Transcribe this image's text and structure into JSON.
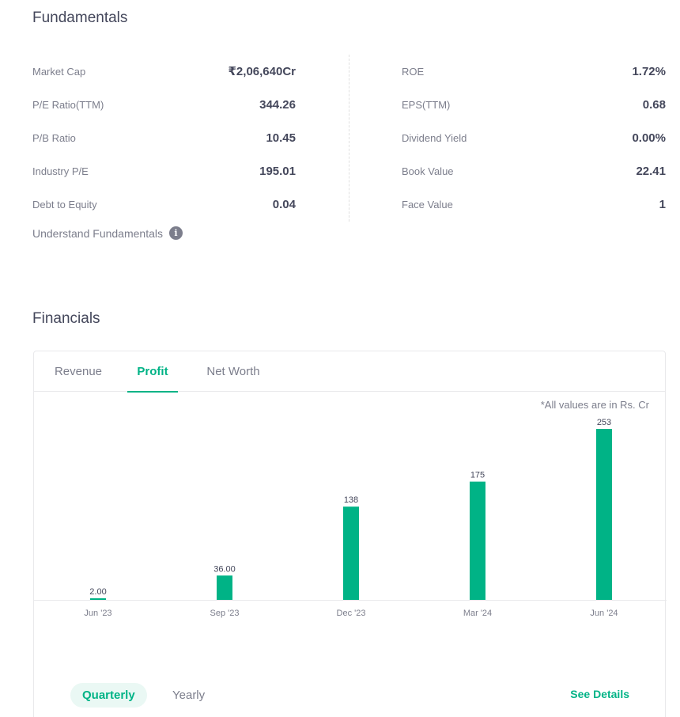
{
  "fundamentals": {
    "title": "Fundamentals",
    "left": [
      {
        "label": "Market Cap",
        "value": "₹2,06,640Cr"
      },
      {
        "label": "P/E Ratio(TTM)",
        "value": "344.26"
      },
      {
        "label": "P/B Ratio",
        "value": "10.45"
      },
      {
        "label": "Industry P/E",
        "value": "195.01"
      },
      {
        "label": "Debt to Equity",
        "value": "0.04"
      }
    ],
    "right": [
      {
        "label": "ROE",
        "value": "1.72%"
      },
      {
        "label": "EPS(TTM)",
        "value": "0.68"
      },
      {
        "label": "Dividend Yield",
        "value": "0.00%"
      },
      {
        "label": "Book Value",
        "value": "22.41"
      },
      {
        "label": "Face Value",
        "value": "1"
      }
    ],
    "understand_label": "Understand Fundamentals",
    "info_icon": "info-icon"
  },
  "financials": {
    "title": "Financials",
    "tabs": [
      "Revenue",
      "Profit",
      "Net Worth"
    ],
    "active_tab": "Profit",
    "note": "*All values are in Rs. Cr",
    "periods": [
      "Quarterly",
      "Yearly"
    ],
    "active_period": "Quarterly",
    "see_details": "See Details"
  },
  "chart_data": {
    "type": "bar",
    "categories": [
      "Jun '23",
      "Sep '23",
      "Dec '23",
      "Mar '24",
      "Jun '24"
    ],
    "values": [
      2,
      36,
      138,
      175,
      253
    ],
    "labels": [
      "2.00",
      "36.00",
      "138",
      "175",
      "253"
    ],
    "ylim": [
      0,
      253
    ],
    "grid": false,
    "bar_color": "#00b386"
  },
  "colors": {
    "accent": "#00b386",
    "text": "#44475b",
    "muted": "#7c7e8c"
  }
}
